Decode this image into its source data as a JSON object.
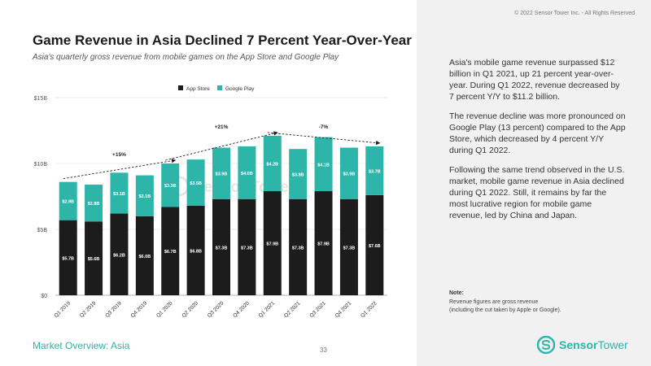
{
  "header": {
    "title": "Game Revenue in Asia Declined 7 Percent Year-Over-Year",
    "subtitle": "Asia's quarterly gross revenue from mobile games on the App Store and Google Play",
    "copyright": "© 2022 Sensor Tower Inc. - All Rights Reserved"
  },
  "sidebar": {
    "paragraphs": [
      "Asia's mobile game revenue surpassed $12 billion in Q1 2021, up 21 percent year-over-year. During Q1 2022, revenue decreased by 7 percent Y/Y to $11.2 billion.",
      "The revenue decline was more pronounced on Google Play (13 percent) compared to the App Store, which decreased by 4 percent Y/Y during Q1 2022.",
      "Following the same trend observed in the U.S. market, mobile game revenue in Asia declined during Q1 2022. Still, it remains by far the most lucrative region for mobile game revenue, led by China and Japan."
    ],
    "note_title": "Note:",
    "note_lines": [
      "Revenue figures are gross revenue",
      "(including the cut taken by Apple or Google)."
    ]
  },
  "footer": {
    "section": "Market Overview: Asia",
    "page": "33",
    "brand_part1": "Sensor",
    "brand_part2": "Tower"
  },
  "chart_data": {
    "type": "bar",
    "stacked": true,
    "categories": [
      "Q1 2019",
      "Q2 2019",
      "Q3 2019",
      "Q4 2019",
      "Q1 2020",
      "Q2 2020",
      "Q3 2020",
      "Q4 2020",
      "Q1 2021",
      "Q2 2021",
      "Q3 2021",
      "Q4 2021",
      "Q1 2022"
    ],
    "series": [
      {
        "name": "App Store",
        "color": "#1c1c1c",
        "values": [
          5.7,
          5.6,
          6.2,
          6.0,
          6.7,
          6.8,
          7.3,
          7.3,
          7.9,
          7.3,
          7.9,
          7.3,
          7.6
        ],
        "labels": [
          "$5.7B",
          "$5.6B",
          "$6.2B",
          "$6.0B",
          "$6.7B",
          "$6.8B",
          "$7.3B",
          "$7.3B",
          "$7.9B",
          "$7.3B",
          "$7.9B",
          "$7.3B",
          "$7.6B"
        ]
      },
      {
        "name": "Google Play",
        "color": "#2cb5a8",
        "values": [
          2.9,
          2.8,
          3.1,
          3.1,
          3.3,
          3.5,
          3.9,
          4.0,
          4.2,
          3.8,
          4.1,
          3.9,
          3.7
        ],
        "labels": [
          "$2.9B",
          "$2.8B",
          "$3.1B",
          "$3.1B",
          "$3.3B",
          "$3.5B",
          "$3.9B",
          "$4.0B",
          "$4.2B",
          "$3.8B",
          "$4.1B",
          "$3.9B",
          "$3.7B"
        ]
      }
    ],
    "y_ticks": [
      0,
      5,
      10,
      15
    ],
    "y_tick_labels": [
      "$0",
      "$5B",
      "$10B",
      "$15B"
    ],
    "ylim": [
      0,
      15
    ],
    "legend_position": "top-center",
    "watermark": "Sensor Tower",
    "annotations": [
      {
        "label": "+15%",
        "from_index": 0,
        "to_index": 4
      },
      {
        "label": "+21%",
        "from_index": 4,
        "to_index": 8
      },
      {
        "label": "-7%",
        "from_index": 8,
        "to_index": 12
      }
    ]
  }
}
